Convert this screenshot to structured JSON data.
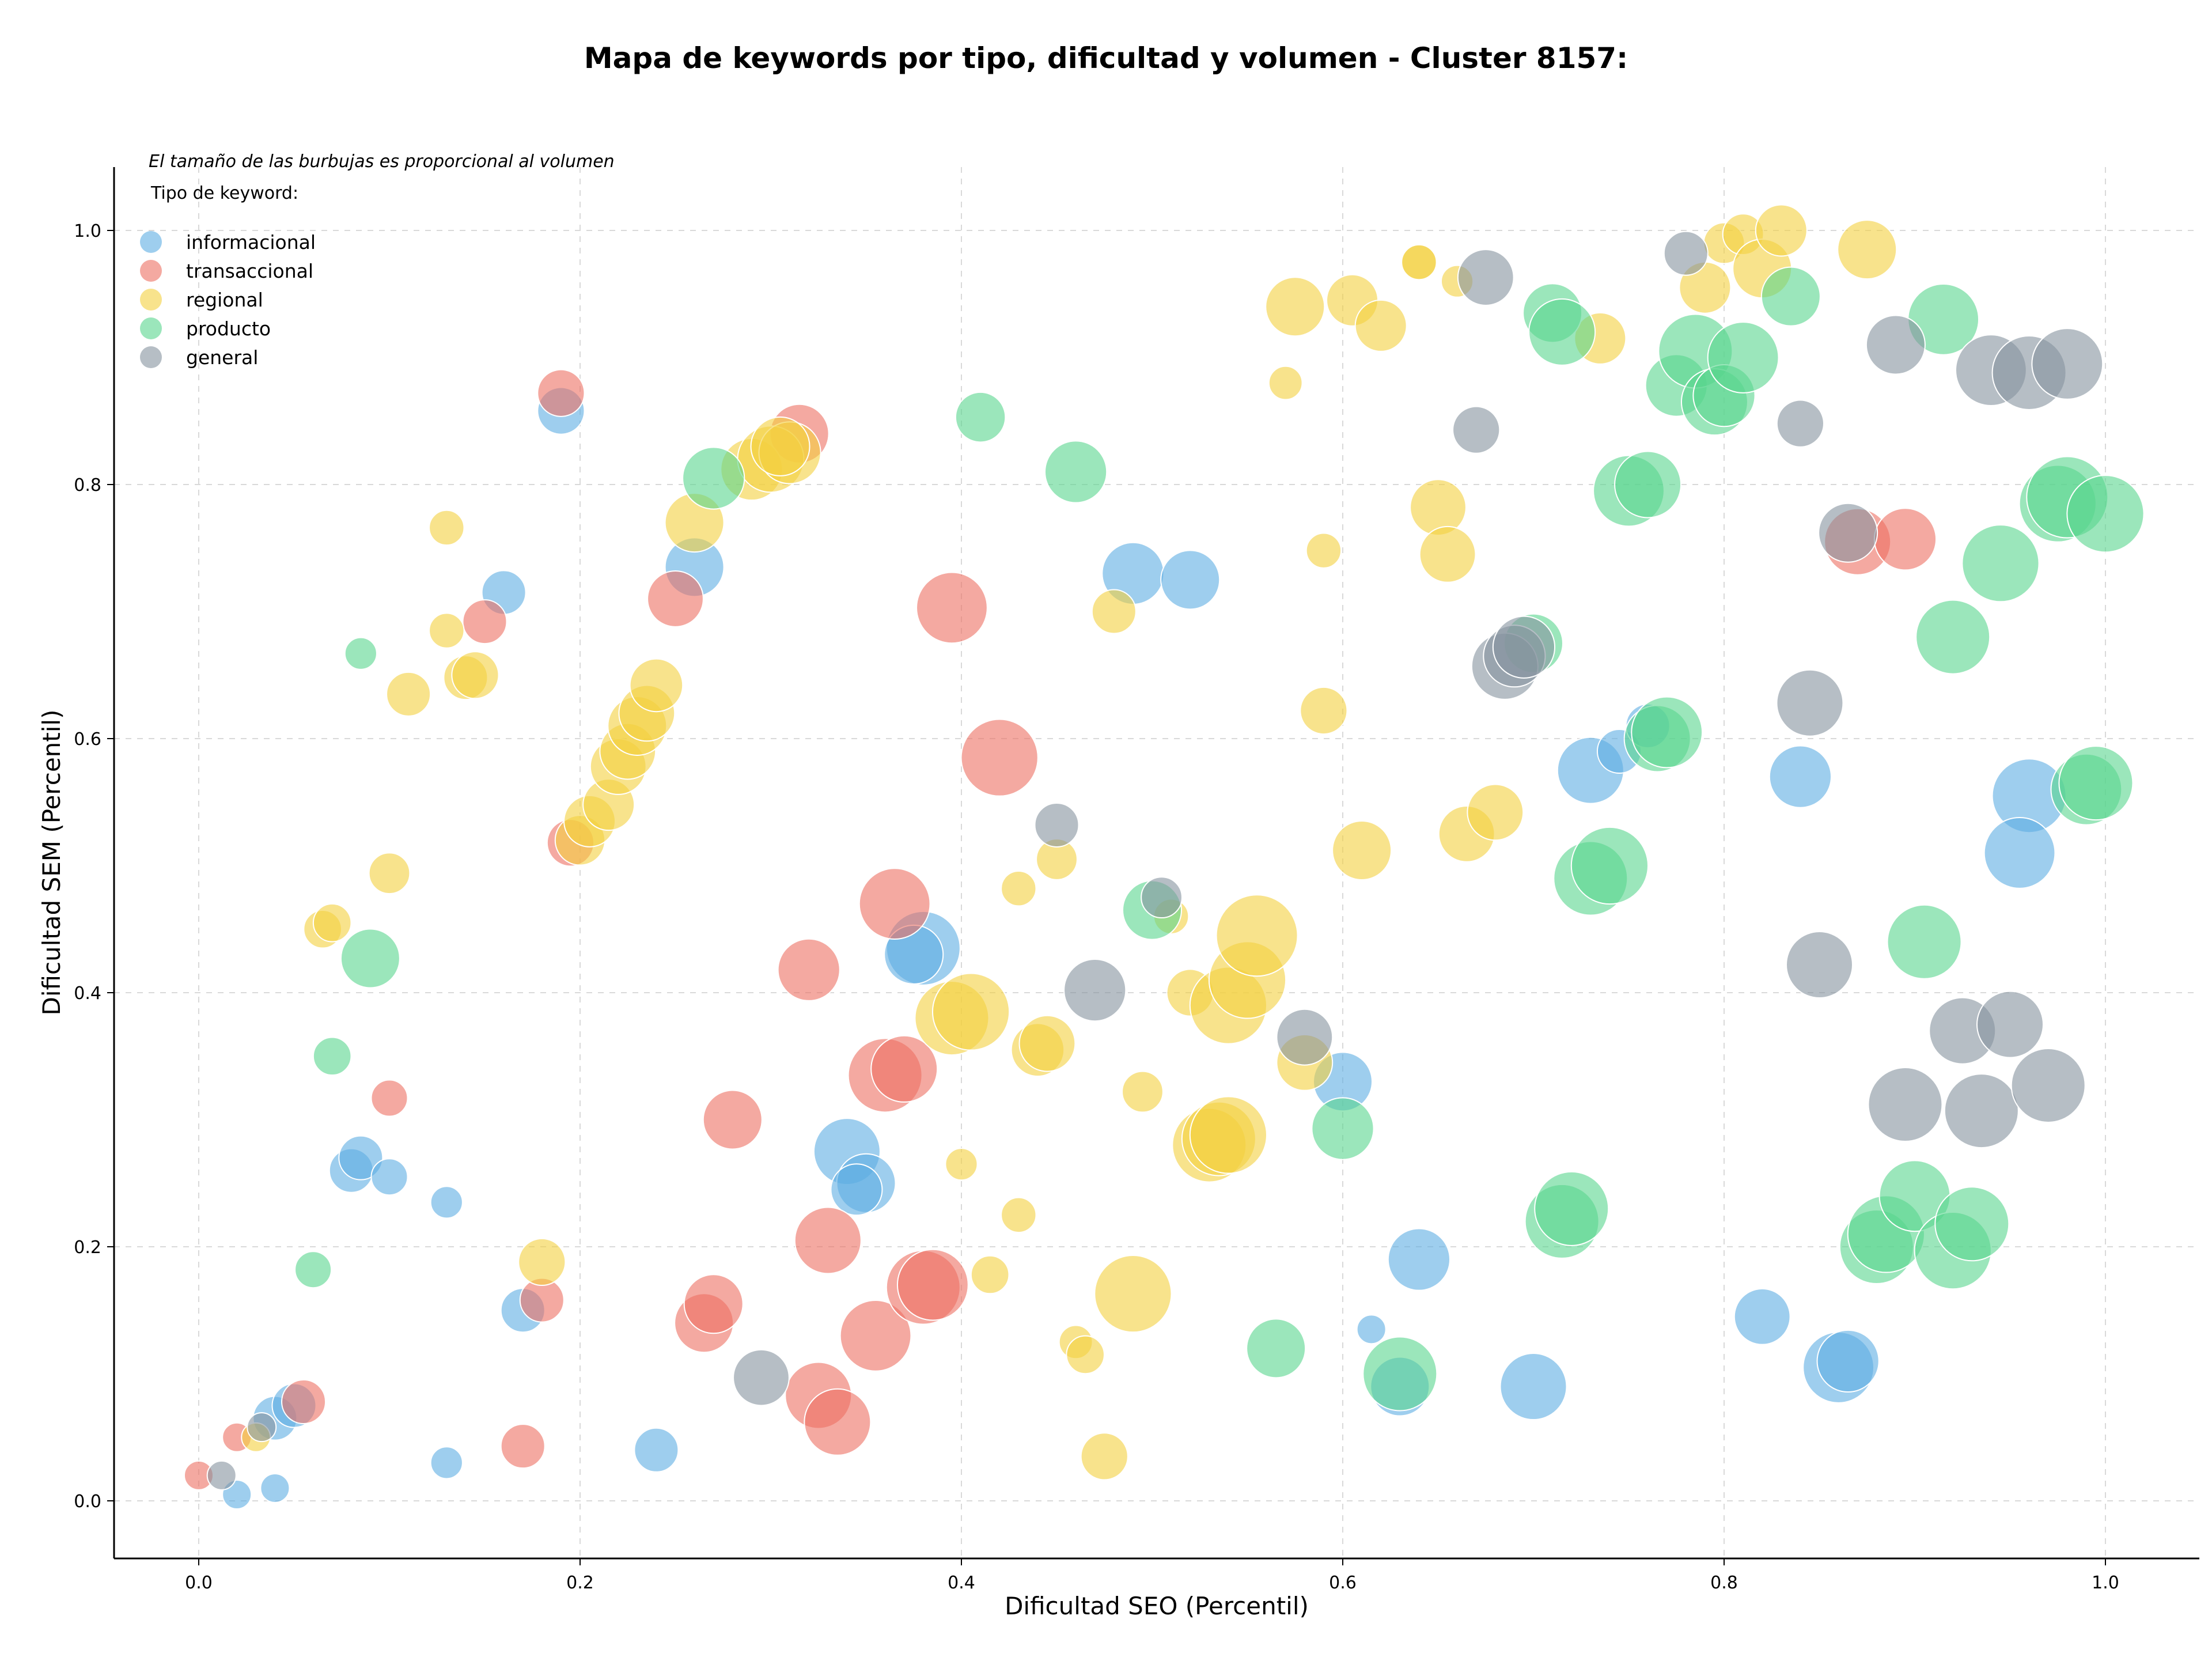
{
  "chart_data": {
    "type": "scatter",
    "title": "Mapa de keywords por tipo, dificultad y volumen - Cluster 8157:",
    "xlabel": "Dificultad SEO (Percentil)",
    "ylabel": "Dificultad SEM (Percentil)",
    "xlim": [
      -0.044,
      1.05
    ],
    "ylim": [
      -0.045,
      1.05
    ],
    "x_ticks": [
      "0.0",
      "0.2",
      "0.4",
      "0.6",
      "0.8",
      "1.0"
    ],
    "y_ticks": [
      "0.0",
      "0.2",
      "0.4",
      "0.6",
      "0.8",
      "1.0"
    ],
    "grid": true,
    "note": "El tamaño de las burbujas es proporcional al volumen",
    "legend": {
      "title": "Tipo de keyword:",
      "placement": "top-left"
    },
    "series": [
      {
        "name": "informacional",
        "color": "#5DADE2",
        "points": [
          [
            0.02,
            0.005,
            1
          ],
          [
            0.04,
            0.01,
            1
          ],
          [
            0.04,
            0.065,
            2
          ],
          [
            0.05,
            0.075,
            2
          ],
          [
            0.08,
            0.26,
            2
          ],
          [
            0.085,
            0.27,
            2
          ],
          [
            0.1,
            0.255,
            1.5
          ],
          [
            0.13,
            0.235,
            1.2
          ],
          [
            0.13,
            0.03,
            1.2
          ],
          [
            0.17,
            0.15,
            2
          ],
          [
            0.16,
            0.715,
            2
          ],
          [
            0.19,
            0.858,
            2.2
          ],
          [
            0.24,
            0.04,
            2
          ],
          [
            0.26,
            0.735,
            3
          ],
          [
            0.34,
            0.275,
            3.5
          ],
          [
            0.35,
            0.25,
            3
          ],
          [
            0.345,
            0.245,
            2.5
          ],
          [
            0.38,
            0.435,
            4
          ],
          [
            0.375,
            0.43,
            3
          ],
          [
            0.49,
            0.73,
            3.2
          ],
          [
            0.52,
            0.725,
            3
          ],
          [
            0.6,
            0.33,
            3
          ],
          [
            0.615,
            0.135,
            1
          ],
          [
            0.63,
            0.09,
            3
          ],
          [
            0.64,
            0.19,
            3.2
          ],
          [
            0.7,
            0.09,
            3.5
          ],
          [
            0.73,
            0.575,
            3.5
          ],
          [
            0.745,
            0.59,
            2
          ],
          [
            0.76,
            0.61,
            2
          ],
          [
            0.82,
            0.145,
            2.8
          ],
          [
            0.84,
            0.57,
            3.2
          ],
          [
            0.86,
            0.105,
            3.8
          ],
          [
            0.865,
            0.11,
            3.2
          ],
          [
            0.96,
            0.555,
            4
          ],
          [
            0.955,
            0.51,
            3.8
          ]
        ]
      },
      {
        "name": "transaccional",
        "color": "#EC7063",
        "points": [
          [
            0.0,
            0.02,
            1
          ],
          [
            0.02,
            0.05,
            1
          ],
          [
            0.055,
            0.078,
            2
          ],
          [
            0.1,
            0.317,
            1.5
          ],
          [
            0.15,
            0.692,
            2
          ],
          [
            0.19,
            0.872,
            2.2
          ],
          [
            0.18,
            0.158,
            2
          ],
          [
            0.17,
            0.043,
            2
          ],
          [
            0.195,
            0.518,
            2.2
          ],
          [
            0.25,
            0.71,
            2.8
          ],
          [
            0.265,
            0.14,
            3
          ],
          [
            0.27,
            0.155,
            3
          ],
          [
            0.28,
            0.3,
            3
          ],
          [
            0.315,
            0.84,
            3
          ],
          [
            0.32,
            0.418,
            3.2
          ],
          [
            0.33,
            0.205,
            3.5
          ],
          [
            0.325,
            0.083,
            3.5
          ],
          [
            0.335,
            0.062,
            3.5
          ],
          [
            0.355,
            0.13,
            3.8
          ],
          [
            0.36,
            0.335,
            4
          ],
          [
            0.365,
            0.47,
            3.8
          ],
          [
            0.37,
            0.34,
            3.5
          ],
          [
            0.38,
            0.168,
            4
          ],
          [
            0.385,
            0.17,
            3.8
          ],
          [
            0.395,
            0.703,
            3.8
          ],
          [
            0.42,
            0.585,
            4.2
          ],
          [
            0.87,
            0.755,
            3.5
          ],
          [
            0.895,
            0.757,
            3.2
          ]
        ]
      },
      {
        "name": "regional",
        "color": "#F4D03F",
        "points": [
          [
            0.03,
            0.05,
            1
          ],
          [
            0.065,
            0.45,
            1.6
          ],
          [
            0.07,
            0.455,
            1.6
          ],
          [
            0.1,
            0.494,
            1.8
          ],
          [
            0.11,
            0.635,
            2
          ],
          [
            0.13,
            0.766,
            1.4
          ],
          [
            0.13,
            0.685,
            1.4
          ],
          [
            0.14,
            0.648,
            2
          ],
          [
            0.145,
            0.65,
            2.2
          ],
          [
            0.18,
            0.188,
            2.2
          ],
          [
            0.2,
            0.52,
            2.4
          ],
          [
            0.205,
            0.535,
            2.5
          ],
          [
            0.215,
            0.548,
            2.5
          ],
          [
            0.22,
            0.578,
            2.8
          ],
          [
            0.225,
            0.59,
            2.8
          ],
          [
            0.23,
            0.61,
            3
          ],
          [
            0.235,
            0.62,
            2.8
          ],
          [
            0.24,
            0.642,
            2.6
          ],
          [
            0.26,
            0.77,
            3
          ],
          [
            0.29,
            0.812,
            3.2
          ],
          [
            0.3,
            0.82,
            3.5
          ],
          [
            0.31,
            0.825,
            3.2
          ],
          [
            0.305,
            0.83,
            3
          ],
          [
            0.395,
            0.38,
            4
          ],
          [
            0.405,
            0.385,
            4.2
          ],
          [
            0.4,
            0.265,
            1.2
          ],
          [
            0.415,
            0.178,
            1.6
          ],
          [
            0.43,
            0.225,
            1.4
          ],
          [
            0.43,
            0.482,
            1.4
          ],
          [
            0.44,
            0.355,
            2.6
          ],
          [
            0.445,
            0.36,
            2.8
          ],
          [
            0.45,
            0.505,
            1.8
          ],
          [
            0.46,
            0.125,
            1.3
          ],
          [
            0.465,
            0.115,
            1.6
          ],
          [
            0.475,
            0.035,
            2.2
          ],
          [
            0.48,
            0.7,
            2
          ],
          [
            0.49,
            0.163,
            4.2
          ],
          [
            0.495,
            0.322,
            1.8
          ],
          [
            0.51,
            0.46,
            1.4
          ],
          [
            0.52,
            0.4,
            2.2
          ],
          [
            0.53,
            0.28,
            4
          ],
          [
            0.535,
            0.285,
            4
          ],
          [
            0.54,
            0.288,
            4.2
          ],
          [
            0.54,
            0.39,
            4.2
          ],
          [
            0.55,
            0.41,
            4.2
          ],
          [
            0.555,
            0.445,
            4.5
          ],
          [
            0.57,
            0.88,
            1.3
          ],
          [
            0.575,
            0.94,
            3
          ],
          [
            0.58,
            0.345,
            2.8
          ],
          [
            0.59,
            0.622,
            2.2
          ],
          [
            0.59,
            0.748,
            1.4
          ],
          [
            0.605,
            0.945,
            2.5
          ],
          [
            0.61,
            0.512,
            3
          ],
          [
            0.62,
            0.925,
            2.5
          ],
          [
            0.64,
            0.975,
            1.5
          ],
          [
            0.64,
            0.975,
            1.4
          ],
          [
            0.65,
            0.782,
            2.8
          ],
          [
            0.655,
            0.745,
            2.8
          ],
          [
            0.66,
            0.96,
            1.2
          ],
          [
            0.665,
            0.525,
            2.8
          ],
          [
            0.68,
            0.542,
            2.8
          ],
          [
            0.735,
            0.915,
            2.5
          ],
          [
            0.79,
            0.955,
            2.5
          ],
          [
            0.8,
            0.99,
            1.8
          ],
          [
            0.81,
            0.997,
            1.8
          ],
          [
            0.82,
            0.97,
            3
          ],
          [
            0.83,
            1.0,
            2.5
          ],
          [
            0.875,
            0.985,
            3
          ]
        ]
      },
      {
        "name": "producto",
        "color": "#58D68D",
        "points": [
          [
            0.06,
            0.182,
            1.5
          ],
          [
            0.07,
            0.35,
            1.6
          ],
          [
            0.085,
            0.667,
            1.2
          ],
          [
            0.09,
            0.427,
            3
          ],
          [
            0.27,
            0.805,
            3.2
          ],
          [
            0.41,
            0.853,
            2.4
          ],
          [
            0.46,
            0.81,
            3.2
          ],
          [
            0.5,
            0.465,
            3
          ],
          [
            0.565,
            0.12,
            3
          ],
          [
            0.6,
            0.293,
            3.2
          ],
          [
            0.63,
            0.1,
            4
          ],
          [
            0.7,
            0.675,
            3
          ],
          [
            0.71,
            0.935,
            3
          ],
          [
            0.715,
            0.92,
            3.5
          ],
          [
            0.715,
            0.22,
            4
          ],
          [
            0.72,
            0.23,
            4
          ],
          [
            0.73,
            0.49,
            4
          ],
          [
            0.74,
            0.5,
            4.2
          ],
          [
            0.75,
            0.795,
            3.8
          ],
          [
            0.76,
            0.8,
            3.5
          ],
          [
            0.765,
            0.6,
            3.5
          ],
          [
            0.77,
            0.605,
            3.8
          ],
          [
            0.775,
            0.878,
            3.2
          ],
          [
            0.785,
            0.905,
            4
          ],
          [
            0.795,
            0.865,
            3.5
          ],
          [
            0.8,
            0.87,
            3.2
          ],
          [
            0.81,
            0.9,
            3.8
          ],
          [
            0.835,
            0.948,
            3
          ],
          [
            0.88,
            0.2,
            4
          ],
          [
            0.885,
            0.21,
            4.2
          ],
          [
            0.9,
            0.24,
            3.8
          ],
          [
            0.905,
            0.44,
            4
          ],
          [
            0.915,
            0.93,
            3.8
          ],
          [
            0.92,
            0.68,
            4
          ],
          [
            0.92,
            0.197,
            4.2
          ],
          [
            0.93,
            0.218,
            4
          ],
          [
            0.945,
            0.738,
            4.2
          ],
          [
            0.975,
            0.785,
            4.2
          ],
          [
            0.98,
            0.79,
            4.5
          ],
          [
            0.99,
            0.56,
            3.8
          ],
          [
            0.995,
            0.565,
            4
          ],
          [
            1.0,
            0.777,
            4.2
          ]
        ]
      },
      {
        "name": "general",
        "color": "#85929E",
        "points": [
          [
            0.012,
            0.02,
            1
          ],
          [
            0.033,
            0.058,
            1
          ],
          [
            0.295,
            0.097,
            2.8
          ],
          [
            0.45,
            0.532,
            2
          ],
          [
            0.47,
            0.402,
            3.2
          ],
          [
            0.505,
            0.475,
            1.8
          ],
          [
            0.58,
            0.365,
            2.8
          ],
          [
            0.67,
            0.843,
            2.2
          ],
          [
            0.675,
            0.963,
            2.8
          ],
          [
            0.685,
            0.657,
            3.5
          ],
          [
            0.69,
            0.665,
            3.2
          ],
          [
            0.695,
            0.672,
            3.2
          ],
          [
            0.78,
            0.982,
            2
          ],
          [
            0.84,
            0.848,
            2.2
          ],
          [
            0.845,
            0.628,
            3.5
          ],
          [
            0.85,
            0.422,
            3.5
          ],
          [
            0.865,
            0.762,
            3
          ],
          [
            0.89,
            0.91,
            3
          ],
          [
            0.895,
            0.312,
            4
          ],
          [
            0.925,
            0.37,
            3.5
          ],
          [
            0.935,
            0.307,
            4
          ],
          [
            0.94,
            0.89,
            3.8
          ],
          [
            0.95,
            0.375,
            3.5
          ],
          [
            0.96,
            0.888,
            4
          ],
          [
            0.97,
            0.327,
            4
          ],
          [
            0.98,
            0.895,
            3.8
          ]
        ]
      }
    ]
  }
}
